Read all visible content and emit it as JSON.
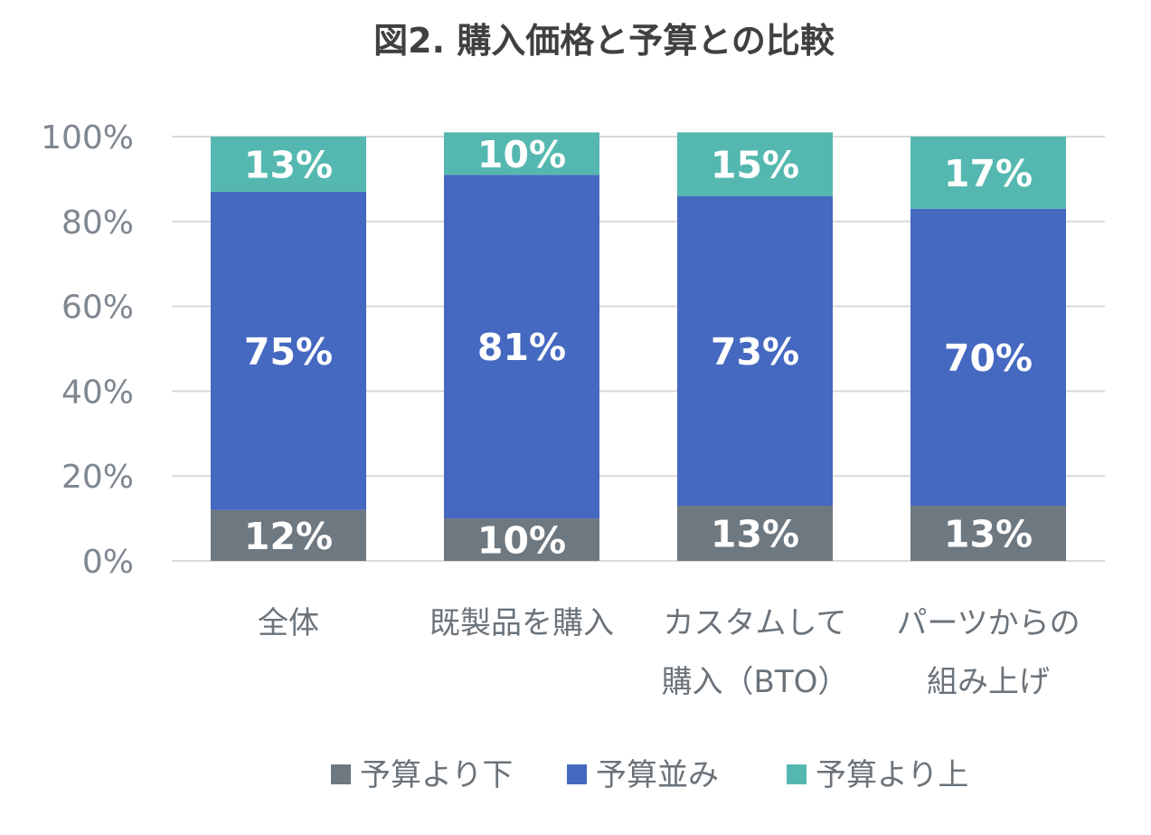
{
  "chart_data": {
    "type": "bar",
    "stacked": true,
    "title": "図2. 購入価格と予算との比較",
    "categories": [
      [
        "全体"
      ],
      [
        "既製品を購入"
      ],
      [
        "カスタムして",
        "購入（BTO）"
      ],
      [
        "パーツからの",
        "組み上げ"
      ]
    ],
    "series": [
      {
        "name": "予算より下",
        "color": "#6e7881",
        "values": [
          12,
          10,
          13,
          13
        ],
        "labels": [
          "12%",
          "10%",
          "13%",
          "13%"
        ]
      },
      {
        "name": "予算並み",
        "color": "#4568c0",
        "values": [
          75,
          81,
          73,
          70
        ],
        "labels": [
          "75%",
          "81%",
          "73%",
          "70%"
        ]
      },
      {
        "name": "予算より上",
        "color": "#55b8b0",
        "values": [
          13,
          10,
          15,
          17
        ],
        "labels": [
          "13%",
          "10%",
          "15%",
          "17%"
        ]
      }
    ],
    "ylim": [
      0,
      100
    ],
    "yticks": [
      "0%",
      "20%",
      "40%",
      "60%",
      "80%",
      "100%"
    ],
    "grid": true,
    "legend": "bottom"
  }
}
